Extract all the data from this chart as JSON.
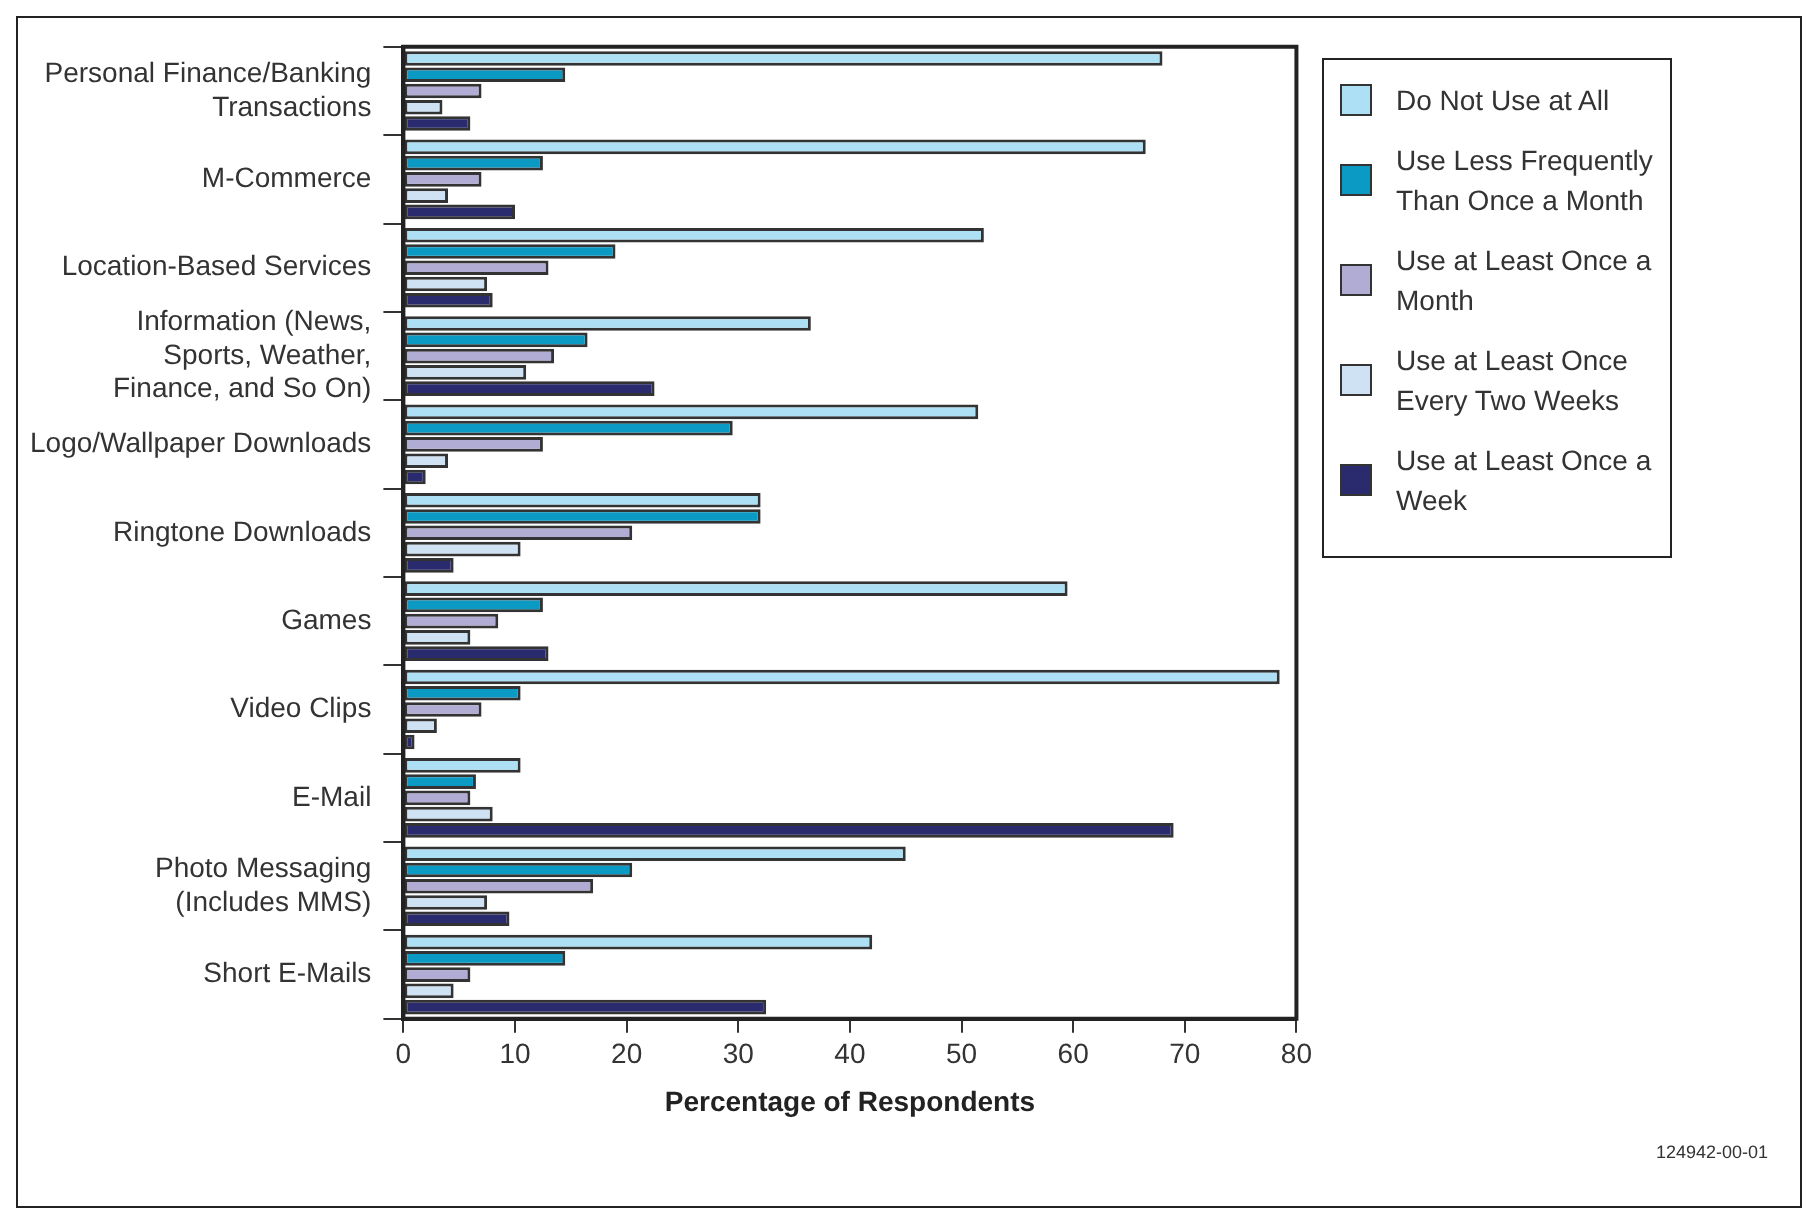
{
  "chart_data": {
    "type": "bar",
    "orientation": "horizontal",
    "xlabel": "Percentage of Respondents",
    "categories": [
      "Personal Finance/Banking Transactions",
      "M-Commerce",
      "Location-Based Services",
      "Information (News, Sports, Weather, Finance, and So On)",
      "Logo/Wallpaper Downloads",
      "Ringtone Downloads",
      "Games",
      "Video Clips",
      "E-Mail",
      "Photo Messaging (Includes MMS)",
      "Short E-Mails"
    ],
    "series": [
      {
        "name": "Do Not Use at All",
        "color": "#aee0f5",
        "values": [
          68,
          66.5,
          52,
          36.5,
          51.5,
          32,
          59.5,
          78.5,
          10.5,
          45,
          42
        ]
      },
      {
        "name": "Use Less Frequently Than Once a Month",
        "color": "#0a9ac4",
        "values": [
          14.5,
          12.5,
          19,
          16.5,
          29.5,
          32,
          12.5,
          10.5,
          6.5,
          20.5,
          14.5
        ]
      },
      {
        "name": "Use at Least Once a Month",
        "color": "#b0acd4",
        "values": [
          7,
          7,
          13,
          13.5,
          12.5,
          20.5,
          8.5,
          7,
          6,
          17,
          6
        ]
      },
      {
        "name": "Use at Least Once Every Two Weeks",
        "color": "#cfe2f4",
        "values": [
          3.5,
          4,
          7.5,
          11,
          4,
          10.5,
          6,
          3,
          8,
          7.5,
          4.5
        ]
      },
      {
        "name": "Use at Least Once a Week",
        "color": "#2a2a6e",
        "values": [
          6,
          10,
          8,
          22.5,
          2,
          4.5,
          13,
          1,
          69,
          9.5,
          32.5
        ]
      }
    ],
    "xlim": [
      0,
      80
    ],
    "xticks": [
      0,
      10,
      20,
      30,
      40,
      50,
      60,
      70,
      80
    ],
    "grid": false,
    "legend": "right",
    "annotations": [
      "124942-00-01"
    ]
  }
}
